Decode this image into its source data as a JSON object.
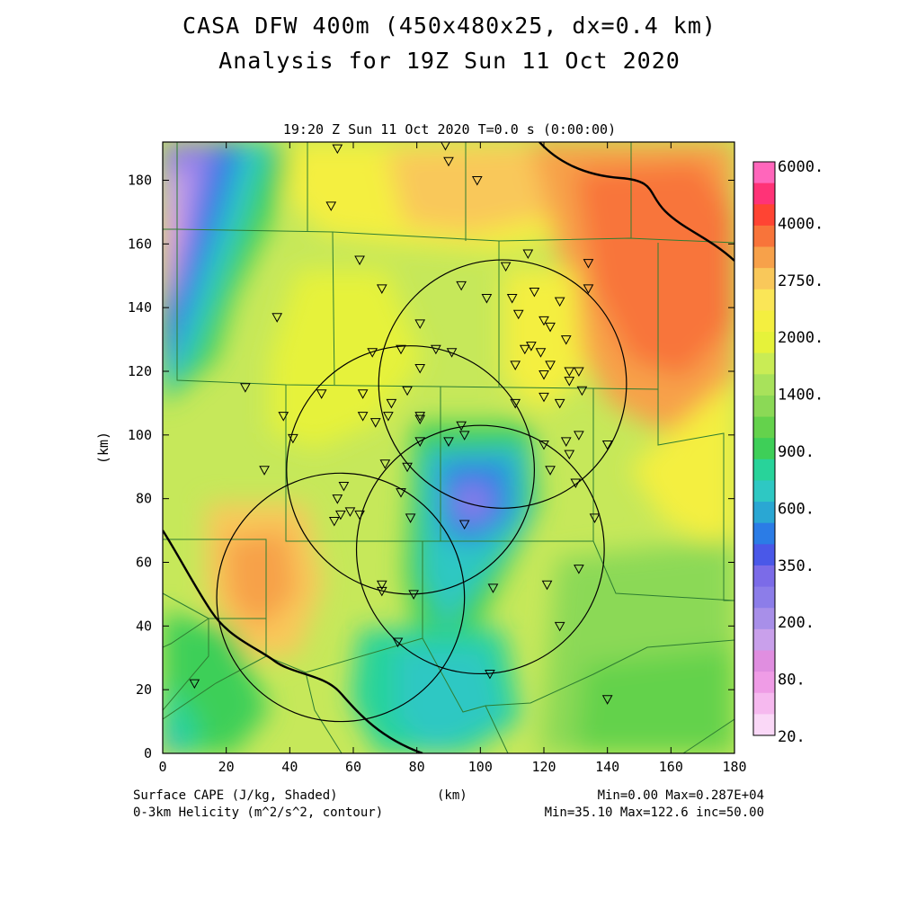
{
  "title_line1": "CASA DFW 400m (450x480x25, dx=0.4 km)",
  "title_line2": "Analysis for 19Z Sun 11 Oct 2020",
  "plot_subtitle": "19:20 Z Sun 11 Oct 2020    T=0.0 s (0:00:00)",
  "axes": {
    "xlabel": "(km)",
    "ylabel": "(km)",
    "xticks": [
      "0",
      "20",
      "40",
      "60",
      "80",
      "100",
      "120",
      "140",
      "160",
      "180"
    ],
    "yticks": [
      "0",
      "20",
      "40",
      "60",
      "80",
      "100",
      "120",
      "140",
      "160",
      "180"
    ],
    "xlim": [
      0,
      180
    ],
    "ylim": [
      0,
      192
    ]
  },
  "footer": {
    "shaded_label": "Surface CAPE (J/kg, Shaded)",
    "contour_label": "0-3km Helicity (m^2/s^2, contour)",
    "xunit": "(km)",
    "shaded_stats": "Min=0.00 Max=0.287E+04",
    "contour_stats": "Min=35.10 Max=122.6 inc=50.00"
  },
  "colorbar": {
    "labels": [
      "6000.",
      "4000.",
      "2750.",
      "2000.",
      "1400.",
      "900.",
      "600.",
      "350.",
      "200.",
      "80.",
      "20."
    ],
    "colors": [
      "#ff66bb",
      "#ff3377",
      "#ff4433",
      "#f8743a",
      "#f7a14a",
      "#f9c85a",
      "#fae657",
      "#f4ef40",
      "#e6f23a",
      "#c9ec55",
      "#a8e25b",
      "#8bd956",
      "#64d24c",
      "#3ecf58",
      "#28d39a",
      "#2ec8c3",
      "#2aa7d3",
      "#2b7ce6",
      "#4a58e8",
      "#7b6be8",
      "#8c7de9",
      "#a88fe9",
      "#c9a0eb",
      "#e08ee0",
      "#ef9ce6",
      "#f6b9ef",
      "#fad8f7"
    ]
  },
  "map_data": {
    "cape_field_range": [
      0,
      2870
    ],
    "helicity_circles_km": [
      {
        "cx": 107,
        "cy": 116,
        "r": 39
      },
      {
        "cx": 78,
        "cy": 89,
        "r": 39
      },
      {
        "cx": 100,
        "cy": 64,
        "r": 39
      },
      {
        "cx": 56,
        "cy": 49,
        "r": 39
      }
    ],
    "stations_km": [
      [
        55,
        190
      ],
      [
        89,
        191
      ],
      [
        90,
        186
      ],
      [
        99,
        180
      ],
      [
        53,
        172
      ],
      [
        62,
        155
      ],
      [
        134,
        154
      ],
      [
        115,
        157
      ],
      [
        108,
        153
      ],
      [
        69,
        146
      ],
      [
        94,
        147
      ],
      [
        102,
        143
      ],
      [
        110,
        143
      ],
      [
        117,
        145
      ],
      [
        125,
        142
      ],
      [
        134,
        146
      ],
      [
        36,
        137
      ],
      [
        81,
        135
      ],
      [
        86,
        127
      ],
      [
        91,
        126
      ],
      [
        112,
        138
      ],
      [
        120,
        136
      ],
      [
        122,
        134
      ],
      [
        127,
        130
      ],
      [
        66,
        126
      ],
      [
        75,
        127
      ],
      [
        116,
        128
      ],
      [
        114,
        127
      ],
      [
        119,
        126
      ],
      [
        122,
        122
      ],
      [
        111,
        122
      ],
      [
        81,
        121
      ],
      [
        120,
        119
      ],
      [
        128,
        120
      ],
      [
        131,
        120
      ],
      [
        26,
        115
      ],
      [
        50,
        113
      ],
      [
        63,
        113
      ],
      [
        77,
        114
      ],
      [
        120,
        112
      ],
      [
        128,
        117
      ],
      [
        132,
        114
      ],
      [
        111,
        110
      ],
      [
        125,
        110
      ],
      [
        38,
        106
      ],
      [
        63,
        106
      ],
      [
        67,
        104
      ],
      [
        71,
        106
      ],
      [
        72,
        110
      ],
      [
        81,
        106
      ],
      [
        81,
        105
      ],
      [
        94,
        103
      ],
      [
        41,
        99
      ],
      [
        81,
        98
      ],
      [
        90,
        98
      ],
      [
        95,
        100
      ],
      [
        120,
        97
      ],
      [
        127,
        98
      ],
      [
        131,
        100
      ],
      [
        140,
        97
      ],
      [
        32,
        89
      ],
      [
        70,
        91
      ],
      [
        77,
        90
      ],
      [
        122,
        89
      ],
      [
        128,
        94
      ],
      [
        130,
        85
      ],
      [
        57,
        84
      ],
      [
        55,
        80
      ],
      [
        75,
        82
      ],
      [
        56,
        75
      ],
      [
        62,
        75
      ],
      [
        59,
        76
      ],
      [
        54,
        73
      ],
      [
        78,
        74
      ],
      [
        95,
        72
      ],
      [
        136,
        74
      ],
      [
        69,
        53
      ],
      [
        69,
        51
      ],
      [
        79,
        50
      ],
      [
        104,
        52
      ],
      [
        121,
        53
      ],
      [
        131,
        58
      ],
      [
        125,
        40
      ],
      [
        74,
        35
      ],
      [
        103,
        25
      ],
      [
        10,
        22
      ],
      [
        140,
        17
      ]
    ]
  }
}
